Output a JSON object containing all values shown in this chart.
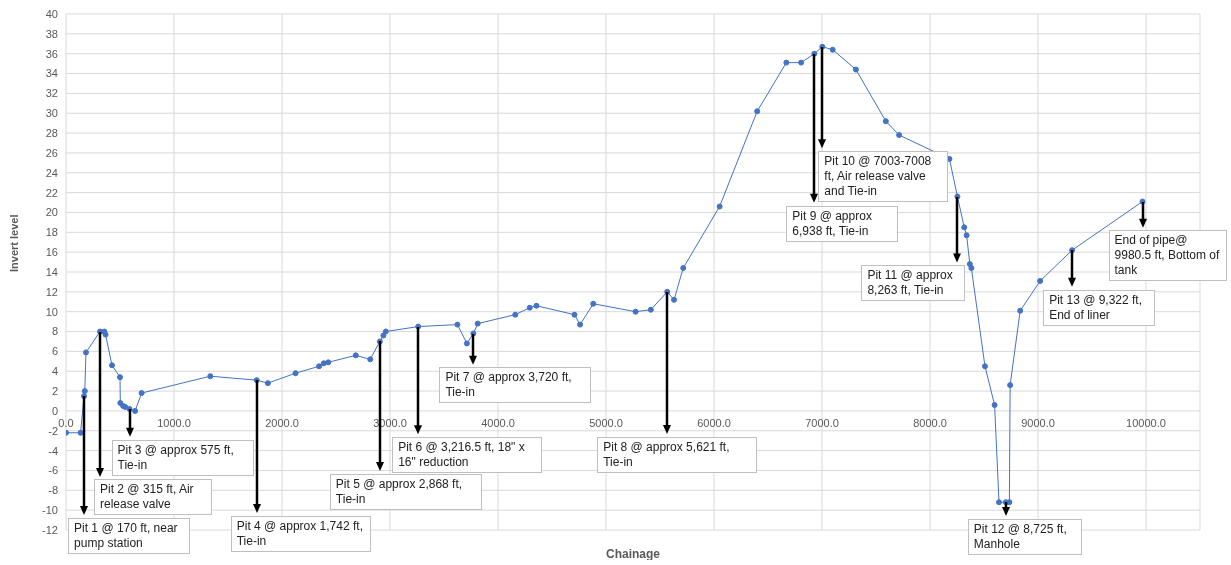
{
  "chart_data": {
    "type": "line",
    "xlabel": "Chainage",
    "ylabel": "Invert level",
    "x": [
      0,
      135,
      167,
      174,
      185,
      315,
      355,
      366,
      426,
      500,
      503,
      529,
      548,
      588,
      640,
      700,
      1336,
      1766,
      1869,
      2125,
      2343,
      2387,
      2428,
      2683,
      2817,
      2906,
      2939,
      2961,
      3261,
      3624,
      3712,
      3772,
      3812,
      4160,
      4294,
      4356,
      4708,
      4760,
      4882,
      5274,
      5415,
      5567,
      5630,
      5715,
      6052,
      6400,
      6670,
      6807,
      6929,
      7003,
      7099,
      7314,
      7591,
      7714,
      8180,
      8254,
      8317,
      8339,
      8369,
      8383,
      8509,
      8598,
      8639,
      8702,
      8735,
      8742,
      8835,
      9020,
      9316,
      9968
    ],
    "series": [
      {
        "color": "#4472c4",
        "values": [
          -2.2,
          -2.2,
          1.5,
          2.0,
          5.9,
          8.0,
          8.0,
          7.7,
          4.6,
          3.4,
          0.8,
          0.5,
          0.4,
          0.2,
          0.0,
          1.8,
          3.5,
          3.1,
          2.8,
          3.8,
          4.5,
          4.8,
          4.9,
          5.6,
          5.2,
          7.0,
          7.6,
          8.0,
          8.5,
          8.7,
          6.8,
          7.8,
          8.8,
          9.7,
          10.4,
          10.6,
          9.7,
          8.7,
          10.8,
          10.0,
          10.2,
          12.0,
          11.2,
          14.4,
          20.6,
          30.2,
          35.1,
          35.1,
          36.0,
          36.7,
          36.4,
          34.4,
          29.2,
          27.8,
          25.4,
          21.6,
          18.5,
          17.7,
          14.8,
          14.4,
          4.5,
          0.6,
          -9.2,
          -9.2,
          -9.2,
          2.6,
          10.1,
          13.1,
          16.2,
          21.1
        ]
      }
    ],
    "xlim": [
      0,
      10500
    ],
    "xticks": [
      {
        "value": 0,
        "label": "0.0"
      },
      {
        "value": 1000,
        "label": "1000.0"
      },
      {
        "value": 2000,
        "label": "2000.0"
      },
      {
        "value": 3000,
        "label": "3000.0"
      },
      {
        "value": 4000,
        "label": "4000.0"
      },
      {
        "value": 5000,
        "label": "5000.0"
      },
      {
        "value": 6000,
        "label": "6000.0"
      },
      {
        "value": 7000,
        "label": "7000.0"
      },
      {
        "value": 8000,
        "label": "8000.0"
      },
      {
        "value": 9000,
        "label": "9000.0"
      },
      {
        "value": 10000,
        "label": "10000.0"
      }
    ],
    "ylim": [
      -12,
      40
    ],
    "yticks": [
      -12,
      -10,
      -8,
      -6,
      -4,
      -2,
      0,
      2,
      4,
      6,
      8,
      10,
      12,
      14,
      16,
      18,
      20,
      22,
      24,
      26,
      28,
      30,
      32,
      34,
      36,
      38,
      40
    ],
    "grid": true,
    "legend": false,
    "marker": "circle",
    "line_style": "solid",
    "annotations": [
      {
        "text": "Pit 1 @ 170 ft, near pump station",
        "x": 167,
        "y": 1.5
      },
      {
        "text": "Pit 2 @ 315 ft, Air release valve",
        "x": 315,
        "y": 8.0
      },
      {
        "text": "Pit 3 @ approx 575 ft, Tie-in",
        "x": 588,
        "y": 0.2
      },
      {
        "text": "Pit 4 @ approx 1,742 ft, Tie-in",
        "x": 1766,
        "y": 3.1
      },
      {
        "text": "Pit 5 @ approx 2,868 ft, Tie-in",
        "x": 2906,
        "y": 7.0
      },
      {
        "text": "Pit 6 @ 3,216.5 ft, 18\" x 16\" reduction",
        "x": 3261,
        "y": 8.5
      },
      {
        "text": "Pit 7 @ approx 3,720 ft, Tie-in",
        "x": 3772,
        "y": 7.8
      },
      {
        "text": "Pit 8 @ approx 5,621 ft, Tie-in",
        "x": 5567,
        "y": 12.0
      },
      {
        "text": "Pit 9 @ approx 6,938 ft, Tie-in",
        "x": 6929,
        "y": 36.0
      },
      {
        "text": "Pit 10 @ 7003-7008 ft, Air release valve and Tie-in",
        "x": 7003,
        "y": 36.7
      },
      {
        "text": "Pit 11 @ approx 8,263 ft, Tie-in",
        "x": 8254,
        "y": 21.6
      },
      {
        "text": "Pit 12 @ 8,725 ft, Manhole",
        "x": 8702,
        "y": -9.2
      },
      {
        "text": "Pit 13 @ 9,322 ft, End of liner",
        "x": 9316,
        "y": 16.2
      },
      {
        "text": "End of pipe@ 9980.5 ft, Bottom of tank",
        "x": 9968,
        "y": 21.1
      }
    ]
  }
}
